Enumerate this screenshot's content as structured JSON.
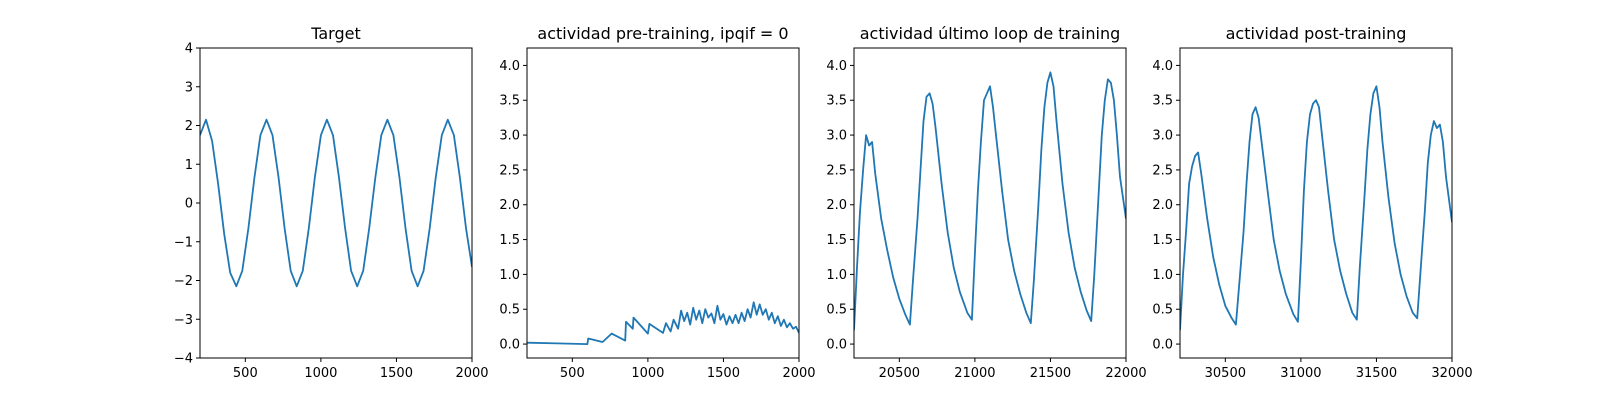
{
  "figure": {
    "background": "#ffffff",
    "line_color": "#1f77b4"
  },
  "chart_data": [
    {
      "type": "line",
      "title": "Target",
      "xlabel": "",
      "ylabel": "",
      "xlim": [
        200,
        2000
      ],
      "ylim": [
        -4,
        4
      ],
      "xticks": [
        500,
        1000,
        1500,
        2000
      ],
      "xtick_labels": [
        "500",
        "1000",
        "1500",
        "2000"
      ],
      "yticks": [
        -4,
        -3,
        -2,
        -1,
        0,
        1,
        2,
        3,
        4
      ],
      "ytick_labels": [
        "−4",
        "−3",
        "−2",
        "−1",
        "0",
        "1",
        "2",
        "3",
        "4"
      ],
      "grid": false,
      "series": [
        {
          "x": [
            200,
            240,
            280,
            320,
            360,
            400,
            440,
            480,
            520,
            560,
            600,
            640,
            680,
            720,
            760,
            800,
            840,
            880,
            920,
            960,
            1000,
            1040,
            1080,
            1120,
            1160,
            1200,
            1240,
            1280,
            1320,
            1360,
            1400,
            1440,
            1480,
            1520,
            1560,
            1600,
            1640,
            1680,
            1720,
            1760,
            1800,
            1840,
            1880,
            1920,
            1960,
            2000
          ],
          "y": [
            1.75,
            2.15,
            1.6,
            0.5,
            -0.8,
            -1.8,
            -2.15,
            -1.75,
            -0.65,
            0.65,
            1.75,
            2.15,
            1.75,
            0.65,
            -0.65,
            -1.75,
            -2.15,
            -1.75,
            -0.65,
            0.65,
            1.75,
            2.15,
            1.75,
            0.65,
            -0.65,
            -1.75,
            -2.15,
            -1.75,
            -0.65,
            0.65,
            1.75,
            2.15,
            1.75,
            0.65,
            -0.65,
            -1.75,
            -2.15,
            -1.75,
            -0.65,
            0.65,
            1.75,
            2.15,
            1.75,
            0.65,
            -0.65,
            -1.65
          ]
        }
      ]
    },
    {
      "type": "line",
      "title": "actividad pre-training, ipqif = 0",
      "xlabel": "",
      "ylabel": "",
      "xlim": [
        200,
        2000
      ],
      "ylim": [
        -0.2,
        4.25
      ],
      "xticks": [
        500,
        1000,
        1500,
        2000
      ],
      "xtick_labels": [
        "500",
        "1000",
        "1500",
        "2000"
      ],
      "yticks": [
        0,
        0.5,
        1,
        1.5,
        2,
        2.5,
        3,
        3.5,
        4
      ],
      "ytick_labels": [
        "0.0",
        "0.5",
        "1.0",
        "1.5",
        "2.0",
        "2.5",
        "3.0",
        "3.5",
        "4.0"
      ],
      "grid": false,
      "series": [
        {
          "x": [
            200,
            400,
            600,
            605,
            700,
            760,
            850,
            855,
            900,
            905,
            1000,
            1010,
            1100,
            1120,
            1150,
            1170,
            1200,
            1220,
            1240,
            1260,
            1280,
            1300,
            1320,
            1340,
            1360,
            1380,
            1400,
            1420,
            1440,
            1460,
            1480,
            1500,
            1520,
            1540,
            1560,
            1580,
            1600,
            1620,
            1640,
            1660,
            1680,
            1700,
            1720,
            1740,
            1760,
            1780,
            1800,
            1820,
            1840,
            1860,
            1880,
            1900,
            1920,
            1940,
            1960,
            1980,
            2000
          ],
          "y": [
            0.02,
            0.01,
            0.0,
            0.08,
            0.03,
            0.15,
            0.05,
            0.32,
            0.22,
            0.38,
            0.15,
            0.29,
            0.16,
            0.3,
            0.18,
            0.35,
            0.22,
            0.48,
            0.33,
            0.45,
            0.28,
            0.52,
            0.35,
            0.48,
            0.3,
            0.5,
            0.38,
            0.44,
            0.3,
            0.55,
            0.35,
            0.43,
            0.28,
            0.4,
            0.3,
            0.42,
            0.3,
            0.45,
            0.33,
            0.5,
            0.38,
            0.6,
            0.42,
            0.57,
            0.42,
            0.5,
            0.35,
            0.45,
            0.3,
            0.4,
            0.26,
            0.35,
            0.24,
            0.3,
            0.22,
            0.25,
            0.16
          ]
        }
      ]
    },
    {
      "type": "line",
      "title": "actividad último loop de training",
      "xlabel": "",
      "ylabel": "",
      "xlim": [
        20200,
        22000
      ],
      "ylim": [
        -0.2,
        4.25
      ],
      "xticks": [
        20500,
        21000,
        21500,
        22000
      ],
      "xtick_labels": [
        "20500",
        "21000",
        "21500",
        "22000"
      ],
      "yticks": [
        0,
        0.5,
        1,
        1.5,
        2,
        2.5,
        3,
        3.5,
        4
      ],
      "ytick_labels": [
        "0.0",
        "0.5",
        "1.0",
        "1.5",
        "2.0",
        "2.5",
        "3.0",
        "3.5",
        "4.0"
      ],
      "grid": false,
      "series": [
        {
          "x": [
            20200,
            20220,
            20240,
            20260,
            20280,
            20300,
            20320,
            20340,
            20380,
            20420,
            20460,
            20500,
            20540,
            20570,
            20590,
            20620,
            20640,
            20660,
            20680,
            20700,
            20720,
            20740,
            20780,
            20820,
            20860,
            20900,
            20950,
            20980,
            21000,
            21020,
            21040,
            21060,
            21080,
            21100,
            21120,
            21140,
            21180,
            21220,
            21260,
            21300,
            21340,
            21370,
            21390,
            21420,
            21440,
            21460,
            21480,
            21500,
            21520,
            21540,
            21580,
            21620,
            21660,
            21700,
            21740,
            21770,
            21790,
            21820,
            21840,
            21860,
            21880,
            21900,
            21920,
            21940,
            21960,
            22000
          ],
          "y": [
            0.2,
            1.1,
            1.9,
            2.5,
            3.0,
            2.85,
            2.9,
            2.45,
            1.8,
            1.35,
            0.95,
            0.65,
            0.42,
            0.28,
            0.9,
            1.8,
            2.5,
            3.2,
            3.55,
            3.6,
            3.45,
            3.1,
            2.3,
            1.6,
            1.1,
            0.75,
            0.45,
            0.35,
            1.3,
            2.2,
            2.9,
            3.5,
            3.6,
            3.7,
            3.4,
            3.0,
            2.2,
            1.5,
            1.05,
            0.72,
            0.45,
            0.3,
            0.9,
            2.0,
            2.8,
            3.4,
            3.75,
            3.9,
            3.7,
            3.2,
            2.3,
            1.6,
            1.1,
            0.75,
            0.48,
            0.33,
            1.0,
            2.2,
            3.0,
            3.5,
            3.8,
            3.75,
            3.5,
            3.0,
            2.4,
            1.8
          ]
        }
      ]
    },
    {
      "type": "line",
      "title": "actividad post-training",
      "xlabel": "",
      "ylabel": "",
      "xlim": [
        30200,
        32000
      ],
      "ylim": [
        -0.2,
        4.25
      ],
      "xticks": [
        30500,
        31000,
        31500,
        32000
      ],
      "xtick_labels": [
        "30500",
        "31000",
        "31500",
        "32000"
      ],
      "yticks": [
        0,
        0.5,
        1,
        1.5,
        2,
        2.5,
        3,
        3.5,
        4
      ],
      "ytick_labels": [
        "0.0",
        "0.5",
        "1.0",
        "1.5",
        "2.0",
        "2.5",
        "3.0",
        "3.5",
        "4.0"
      ],
      "grid": false,
      "series": [
        {
          "x": [
            30200,
            30220,
            30240,
            30260,
            30280,
            30300,
            30320,
            30340,
            30380,
            30420,
            30460,
            30500,
            30540,
            30570,
            30590,
            30620,
            30640,
            30660,
            30680,
            30700,
            30720,
            30740,
            30780,
            30820,
            30860,
            30900,
            30950,
            30980,
            31000,
            31020,
            31040,
            31060,
            31080,
            31100,
            31120,
            31140,
            31180,
            31220,
            31260,
            31300,
            31340,
            31370,
            31390,
            31420,
            31440,
            31460,
            31480,
            31500,
            31520,
            31540,
            31580,
            31620,
            31660,
            31700,
            31740,
            31770,
            31790,
            31820,
            31840,
            31860,
            31880,
            31900,
            31920,
            31940,
            31960,
            32000
          ],
          "y": [
            0.2,
            1.0,
            1.6,
            2.3,
            2.55,
            2.7,
            2.75,
            2.45,
            1.8,
            1.25,
            0.85,
            0.55,
            0.38,
            0.28,
            0.8,
            1.6,
            2.3,
            2.9,
            3.3,
            3.4,
            3.25,
            2.9,
            2.2,
            1.5,
            1.05,
            0.72,
            0.43,
            0.32,
            1.2,
            2.2,
            2.9,
            3.3,
            3.45,
            3.5,
            3.4,
            3.0,
            2.2,
            1.5,
            1.05,
            0.72,
            0.45,
            0.35,
            1.1,
            2.1,
            2.8,
            3.3,
            3.6,
            3.7,
            3.4,
            2.9,
            2.1,
            1.45,
            1.0,
            0.68,
            0.45,
            0.37,
            1.0,
            1.9,
            2.6,
            3.0,
            3.2,
            3.1,
            3.15,
            2.9,
            2.4,
            1.75
          ]
        }
      ]
    }
  ]
}
